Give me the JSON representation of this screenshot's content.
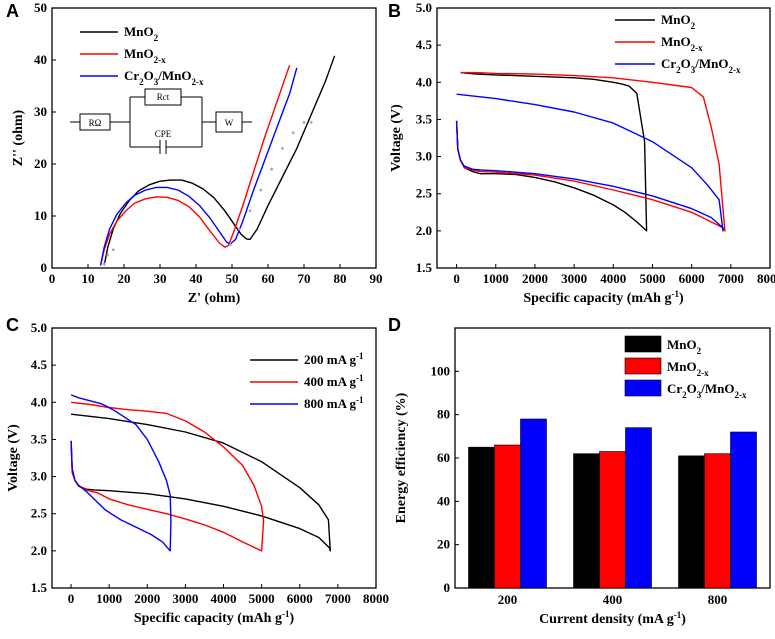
{
  "panels": {
    "A": {
      "letter": "A"
    },
    "B": {
      "letter": "B"
    },
    "C": {
      "letter": "C"
    },
    "D": {
      "letter": "D"
    }
  },
  "circuit": {
    "r_omega": "RΩ",
    "r_ct": "Rct",
    "cpe": "CPE",
    "w": "W"
  },
  "colors": {
    "black": "#000000",
    "red": "#ff0000",
    "blue": "#0000ff"
  },
  "chart_data": [
    {
      "id": "A",
      "type": "line",
      "title": "",
      "xlabel": "Z' (ohm)",
      "ylabel": "Z'' (ohm)",
      "xlim": [
        0,
        90
      ],
      "ylim": [
        0,
        50
      ],
      "xticks": [
        0,
        10,
        20,
        30,
        40,
        50,
        60,
        70,
        80,
        90
      ],
      "yticks": [
        0,
        10,
        20,
        30,
        40,
        50
      ],
      "legend_position": "top-left",
      "series": [
        {
          "name": "MnO2",
          "label_main": "MnO",
          "label_sub": "2",
          "label_tail": "",
          "color": "#000000",
          "x": [
            14.5,
            15.5,
            17,
            19,
            21.5,
            24,
            27,
            30,
            33,
            36,
            39,
            42,
            45,
            48,
            50.5,
            52.5,
            54,
            55,
            57,
            60,
            64,
            68,
            72,
            76,
            78.5
          ],
          "y": [
            0.5,
            4,
            7.5,
            10.5,
            13,
            14.8,
            16,
            16.7,
            16.9,
            16.9,
            16.3,
            15.2,
            13.5,
            11,
            8.5,
            6.5,
            5.6,
            5.5,
            7.5,
            12,
            17.5,
            23,
            29.5,
            36,
            40.8
          ]
        },
        {
          "name": "MnO2-x",
          "label_main": "MnO",
          "label_sub": "2-x",
          "label_tail": "",
          "color": "#ff0000",
          "x": [
            13.5,
            14.5,
            16,
            18,
            20.5,
            23,
            26,
            29,
            32,
            35,
            38,
            41,
            44,
            46.5,
            48,
            49,
            50.5,
            53,
            56,
            59,
            62,
            64.5,
            66
          ],
          "y": [
            0.5,
            3.5,
            6.5,
            9,
            11,
            12.5,
            13.3,
            13.7,
            13.6,
            13,
            11.8,
            9.8,
            7,
            4.8,
            4,
            4.3,
            7,
            12,
            18.5,
            25,
            31,
            36,
            39
          ]
        },
        {
          "name": "Cr2O3/MnO2-x",
          "label_main": "Cr",
          "label_sub": "2",
          "label_tail": "O3/MnO2-x",
          "color": "#0000ff",
          "x": [
            13.5,
            14.5,
            16,
            18,
            20.5,
            23,
            26,
            29,
            32,
            35,
            38,
            41,
            44,
            46.5,
            48.5,
            49.5,
            51,
            53,
            56,
            59.5,
            63,
            66,
            68
          ],
          "y": [
            0.5,
            4,
            7.5,
            10.3,
            12.5,
            14,
            15,
            15.5,
            15.5,
            15,
            13.8,
            12,
            9.5,
            7,
            5,
            4.6,
            5.5,
            9,
            15,
            21.5,
            28,
            33.5,
            38.5
          ]
        },
        {
          "name": "fit",
          "color": "#9aa4dd",
          "x": [
            14.5,
            15.5,
            17,
            49.5,
            52,
            55,
            58,
            61,
            64,
            67,
            70,
            72
          ],
          "y": [
            0.8,
            2.5,
            3.5,
            4.5,
            7.5,
            11,
            15,
            19,
            23,
            26,
            28,
            28
          ]
        }
      ]
    },
    {
      "id": "B",
      "type": "line",
      "title": "",
      "xlabel": "Specific capacity (mAh g-1)",
      "ylabel": "Voltage (V)",
      "xlim": [
        -500,
        8000
      ],
      "ylim": [
        1.5,
        5.0
      ],
      "xticks": [
        0,
        1000,
        2000,
        3000,
        4000,
        5000,
        6000,
        7000,
        8000
      ],
      "yticks": [
        1.5,
        2.0,
        2.5,
        3.0,
        3.5,
        4.0,
        4.5,
        5.0
      ],
      "legend_position": "top-right",
      "series": [
        {
          "name": "MnO2",
          "label_main": "MnO",
          "label_sub": "2",
          "label_tail": "",
          "color": "#000000",
          "x": [
            0,
            30,
            100,
            200,
            400,
            600,
            1000,
            1500,
            2000,
            2500,
            3000,
            3500,
            4000,
            4300,
            4600,
            4850,
            4800,
            4600,
            4400,
            4200,
            4000,
            3500,
            3000,
            2000,
            1000,
            500,
            100
          ],
          "y": [
            3.48,
            3.1,
            2.95,
            2.85,
            2.8,
            2.77,
            2.77,
            2.76,
            2.72,
            2.66,
            2.58,
            2.48,
            2.35,
            2.25,
            2.12,
            2.0,
            3.2,
            3.85,
            3.95,
            3.98,
            4.0,
            4.04,
            4.06,
            4.08,
            4.1,
            4.11,
            4.13
          ]
        },
        {
          "name": "MnO2-x",
          "label_main": "MnO",
          "label_sub": "2-x",
          "label_tail": "",
          "color": "#ff0000",
          "x": [
            0,
            30,
            100,
            200,
            400,
            600,
            1000,
            2000,
            3000,
            4000,
            5000,
            6000,
            6500,
            6800,
            6850,
            6700,
            6500,
            6300,
            6000,
            5000,
            4000,
            3000,
            2000,
            1000,
            500,
            100
          ],
          "y": [
            3.48,
            3.1,
            2.95,
            2.85,
            2.82,
            2.8,
            2.79,
            2.75,
            2.67,
            2.55,
            2.42,
            2.25,
            2.12,
            2.04,
            2.0,
            2.9,
            3.4,
            3.8,
            3.93,
            4.0,
            4.06,
            4.09,
            4.11,
            4.12,
            4.13,
            4.13
          ]
        },
        {
          "name": "Cr2O3/MnO2-x",
          "label_main": "Cr",
          "label_sub": "2",
          "label_tail": "O3/MnO2-x",
          "color": "#0000ff",
          "x": [
            0,
            30,
            100,
            200,
            400,
            600,
            1000,
            2000,
            3000,
            4000,
            5000,
            6000,
            6500,
            6800,
            6800,
            6700,
            6400,
            6000,
            5000,
            4000,
            3000,
            2000,
            1000,
            0
          ],
          "y": [
            3.48,
            3.1,
            2.95,
            2.87,
            2.83,
            2.82,
            2.81,
            2.77,
            2.7,
            2.6,
            2.47,
            2.3,
            2.18,
            2.04,
            2.0,
            2.42,
            2.62,
            2.85,
            3.2,
            3.45,
            3.6,
            3.7,
            3.78,
            3.84
          ]
        }
      ]
    },
    {
      "id": "C",
      "type": "line",
      "title": "",
      "xlabel": "Specific capacity (mAh g-1)",
      "ylabel": "Voltage (V)",
      "xlim": [
        -500,
        8000
      ],
      "ylim": [
        1.5,
        5.0
      ],
      "xticks": [
        0,
        1000,
        2000,
        3000,
        4000,
        5000,
        6000,
        7000,
        8000
      ],
      "yticks": [
        1.5,
        2.0,
        2.5,
        3.0,
        3.5,
        4.0,
        4.5,
        5.0
      ],
      "legend_position": "top-right",
      "series": [
        {
          "name": "200 mA g-1",
          "label_main": "200 mA g",
          "label_sub": "",
          "label_sup": "-1",
          "color": "#000000",
          "x": [
            0,
            30,
            100,
            200,
            400,
            600,
            1000,
            2000,
            3000,
            4000,
            5000,
            6000,
            6500,
            6780,
            6800,
            6750,
            6500,
            6000,
            5000,
            4000,
            3000,
            2000,
            1000,
            0
          ],
          "y": [
            3.48,
            3.1,
            2.95,
            2.87,
            2.83,
            2.82,
            2.81,
            2.77,
            2.7,
            2.6,
            2.47,
            2.3,
            2.18,
            2.04,
            2.0,
            2.42,
            2.62,
            2.85,
            3.2,
            3.45,
            3.6,
            3.7,
            3.78,
            3.84
          ]
        },
        {
          "name": "400 mA g-1",
          "label_main": "400 mA g",
          "label_sub": "",
          "label_sup": "-1",
          "color": "#ff0000",
          "x": [
            0,
            30,
            100,
            200,
            400,
            700,
            1000,
            1500,
            2000,
            2500,
            3000,
            3500,
            4000,
            4500,
            5000,
            5050,
            5000,
            4800,
            4500,
            4000,
            3500,
            3000,
            2500,
            2000,
            1500,
            1000,
            500,
            0
          ],
          "y": [
            3.48,
            3.05,
            2.95,
            2.88,
            2.82,
            2.78,
            2.7,
            2.62,
            2.56,
            2.5,
            2.43,
            2.35,
            2.25,
            2.12,
            2.0,
            2.4,
            2.6,
            2.88,
            3.15,
            3.4,
            3.6,
            3.75,
            3.85,
            3.88,
            3.9,
            3.93,
            3.97,
            4.0
          ]
        },
        {
          "name": "800 mA g-1",
          "label_main": "800 mA g",
          "label_sub": "",
          "label_sup": "-1",
          "color": "#0000ff",
          "x": [
            0,
            30,
            100,
            200,
            400,
            600,
            900,
            1300,
            1700,
            2100,
            2400,
            2600,
            2620,
            2600,
            2500,
            2300,
            2000,
            1700,
            1400,
            1100,
            800,
            500,
            200,
            0
          ],
          "y": [
            3.48,
            3.1,
            2.95,
            2.88,
            2.8,
            2.7,
            2.55,
            2.42,
            2.32,
            2.22,
            2.12,
            2.0,
            2.4,
            2.75,
            2.95,
            3.2,
            3.5,
            3.7,
            3.8,
            3.9,
            3.98,
            4.02,
            4.06,
            4.1
          ]
        }
      ]
    },
    {
      "id": "D",
      "type": "bar",
      "title": "",
      "xlabel": "Current density (mA g-1)",
      "ylabel": "Energy efficiency (%)",
      "categories": [
        "200",
        "400",
        "800"
      ],
      "ylim": [
        0,
        120
      ],
      "yticks": [
        0,
        20,
        40,
        60,
        80,
        100
      ],
      "legend_position": "top-right",
      "series": [
        {
          "name": "MnO2",
          "label_main": "MnO",
          "label_sub": "2",
          "label_tail": "",
          "color": "#000000",
          "values": [
            65,
            62,
            61
          ]
        },
        {
          "name": "MnO2-x",
          "label_main": "MnO",
          "label_sub": "2-x",
          "label_tail": "",
          "color": "#ff0000",
          "values": [
            66,
            63,
            62
          ]
        },
        {
          "name": "Cr2O3/MnO2-x",
          "label_main": "Cr",
          "label_sub": "2",
          "label_tail": "O3/MnO2-x",
          "color": "#0000ff",
          "values": [
            78,
            74,
            72
          ]
        }
      ]
    }
  ]
}
